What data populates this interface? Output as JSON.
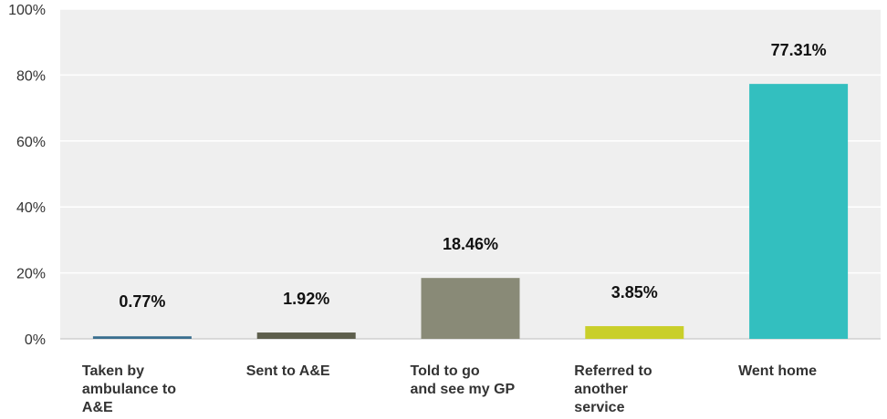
{
  "chart_data": {
    "type": "bar",
    "categories": [
      [
        "Taken by",
        "ambulance to",
        "A&E"
      ],
      [
        "Sent to A&E"
      ],
      [
        "Told to go",
        "and see my GP"
      ],
      [
        "Referred to",
        "another",
        "service"
      ],
      [
        "Went home"
      ]
    ],
    "values": [
      0.77,
      1.92,
      18.46,
      3.85,
      77.31
    ],
    "data_labels": [
      "0.77%",
      "1.92%",
      "18.46%",
      "3.85%",
      "77.31%"
    ],
    "bar_colors": [
      "#3a6f8f",
      "#5d5e4c",
      "#898a77",
      "#c9cf2a",
      "#33bfbf"
    ],
    "yticks": [
      "0%",
      "20%",
      "40%",
      "60%",
      "80%",
      "100%"
    ],
    "ylim": [
      0,
      100
    ],
    "grid": true,
    "plot_background": "#efefef",
    "gridline_color": "#ffffff"
  }
}
